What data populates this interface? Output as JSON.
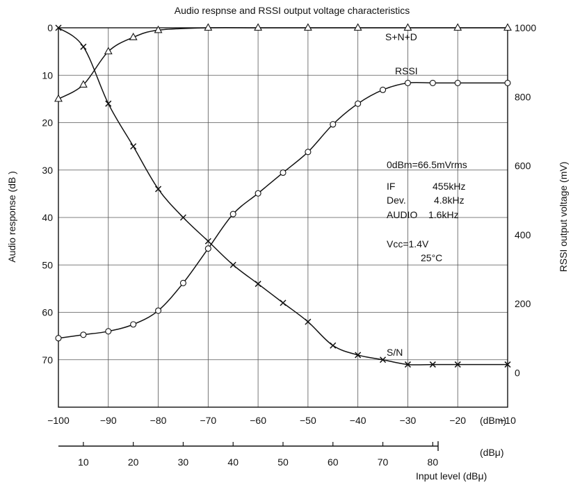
{
  "chart_data": {
    "type": "line",
    "title": "Audio respnse and RSSI output voltage characteristics",
    "xlabel": "Input level (dBμ)",
    "ylabel_left": "Audio response (dB )",
    "ylabel_right": "RSSI output voltage (mV)",
    "x_unit_dbm": "(dBm)",
    "x_unit_dbu": "(dBμ)",
    "xlim_dbm": [
      -100,
      -10
    ],
    "ylim_left": [
      80,
      0
    ],
    "ylim_right": [
      -100,
      1000
    ],
    "x_ticks_dbm": [
      "−100",
      "−90",
      "−80",
      "−70",
      "−60",
      "−50",
      "−40",
      "−30",
      "−20",
      "−10"
    ],
    "x_ticks_dbu": [
      "10",
      "20",
      "30",
      "40",
      "50",
      "60",
      "70",
      "80"
    ],
    "y_ticks_left": [
      "0",
      "10",
      "20",
      "30",
      "40",
      "50",
      "60",
      "70"
    ],
    "y_ticks_right": [
      "1000",
      "800",
      "600",
      "400",
      "200",
      "0"
    ],
    "grid": true,
    "series": [
      {
        "name": "S+N+D",
        "axis": "left",
        "marker": "triangle",
        "x": [
          -100,
          -95,
          -90,
          -85,
          -80,
          -70,
          -60,
          -50,
          -40,
          -30,
          -20,
          -10
        ],
        "y": [
          15,
          12,
          5,
          2,
          0.5,
          0,
          0,
          0,
          0,
          0,
          0,
          0
        ]
      },
      {
        "name": "RSSI",
        "axis": "right",
        "marker": "circle",
        "x": [
          -100,
          -95,
          -90,
          -85,
          -80,
          -75,
          -70,
          -65,
          -60,
          -55,
          -50,
          -45,
          -40,
          -35,
          -30,
          -25,
          -20,
          -10
        ],
        "y": [
          100,
          110,
          120,
          140,
          180,
          260,
          360,
          460,
          520,
          580,
          640,
          720,
          780,
          820,
          840,
          840,
          840,
          840
        ]
      },
      {
        "name": "S/N",
        "axis": "left",
        "marker": "cross",
        "x": [
          -100,
          -95,
          -90,
          -85,
          -80,
          -75,
          -70,
          -65,
          -60,
          -55,
          -50,
          -45,
          -40,
          -35,
          -30,
          -25,
          -20,
          -10
        ],
        "y": [
          0,
          4,
          16,
          25,
          34,
          40,
          45,
          50,
          54,
          58,
          62,
          67,
          69,
          70,
          71,
          71,
          71,
          71
        ]
      }
    ],
    "annotations": {
      "ref": "0dBm=66.5mVrms",
      "if_label": "IF",
      "if_value": "455kHz",
      "dev_label": "Dev.",
      "dev_value": "4.8kHz",
      "audio_label": "AUDIO",
      "audio_value": "1.6kHz",
      "vcc": "Vcc=1.4V",
      "temp": "25°C"
    }
  }
}
